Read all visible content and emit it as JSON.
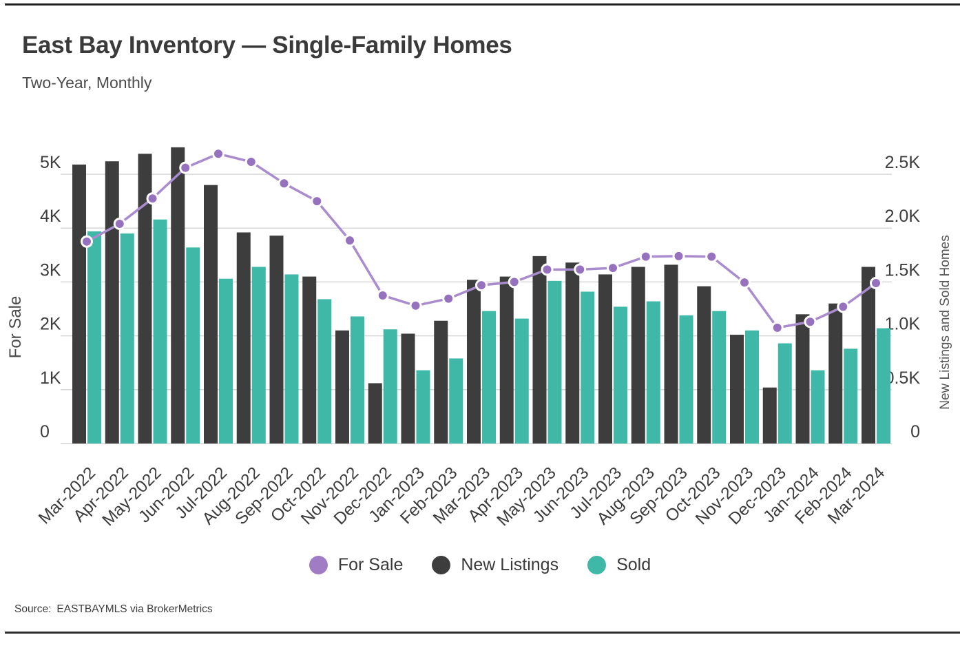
{
  "page": {
    "title": "East Bay Inventory — Single-Family Homes",
    "subtitle": "Two-Year, Monthly",
    "source_label": "Source:",
    "source_text": "EASTBAYMLS via BrokerMetrics"
  },
  "colors": {
    "for_sale_line": "#a98cce",
    "for_sale_marker": "#9671bd",
    "for_sale_marker_ring": "#ffffff",
    "new_listings": "#3d3d3d",
    "sold": "#3fb8a8",
    "legend_for_sale": "#a07cc5",
    "grid": "#d6d6d6",
    "tick_text": "#3d3d3d",
    "axis_title_text": "#4a4a4a"
  },
  "legend": {
    "items": [
      {
        "label": "For Sale",
        "color": "#a07cc5"
      },
      {
        "label": "New Listings",
        "color": "#3d3d3d"
      },
      {
        "label": "Sold",
        "color": "#3fb8a8"
      }
    ]
  },
  "chart_data": {
    "type": "bar",
    "subtype": "grouped bars with overlaid line (dual axis)",
    "title": "East Bay Inventory — Single-Family Homes",
    "subtitle": "Two-Year, Monthly",
    "categories": [
      "Mar-2022",
      "Apr-2022",
      "May-2022",
      "Jun-2022",
      "Jul-2022",
      "Aug-2022",
      "Sep-2022",
      "Oct-2022",
      "Nov-2022",
      "Dec-2022",
      "Jan-2023",
      "Feb-2023",
      "Mar-2023",
      "Apr-2023",
      "May-2023",
      "Jun-2023",
      "Jul-2023",
      "Aug-2023",
      "Sep-2023",
      "Oct-2023",
      "Nov-2023",
      "Dec-2023",
      "Jan-2024",
      "Feb-2024",
      "Mar-2024"
    ],
    "series": [
      {
        "name": "For Sale",
        "type": "line",
        "axis": "left",
        "values": [
          3750,
          4080,
          4550,
          5120,
          5380,
          5230,
          4830,
          4500,
          3770,
          2750,
          2560,
          2690,
          2940,
          3000,
          3230,
          3230,
          3260,
          3470,
          3480,
          3470,
          2990,
          2150,
          2260,
          2540,
          2980
        ]
      },
      {
        "name": "New Listings",
        "type": "bar",
        "axis": "right",
        "values": [
          2590,
          2620,
          2690,
          2750,
          2400,
          1960,
          1930,
          1550,
          1050,
          560,
          1020,
          1140,
          1520,
          1550,
          1740,
          1680,
          1570,
          1640,
          1660,
          1460,
          1010,
          520,
          1200,
          1300,
          1640
        ]
      },
      {
        "name": "Sold",
        "type": "bar",
        "axis": "right",
        "values": [
          1970,
          1950,
          2080,
          1820,
          1530,
          1640,
          1570,
          1340,
          1180,
          1060,
          680,
          790,
          1230,
          1160,
          1510,
          1410,
          1270,
          1320,
          1190,
          1230,
          1050,
          930,
          680,
          880,
          1070
        ]
      }
    ],
    "left_axis": {
      "title": "For Sale",
      "ticks": [
        "0",
        "1K",
        "2K",
        "3K",
        "4K",
        "5K"
      ],
      "min": 0,
      "max": 5000
    },
    "right_axis": {
      "title": "New Listings and Sold Homes",
      "ticks": [
        "0",
        "0.5K",
        "1.0K",
        "1.5K",
        "2.0K",
        "2.5K"
      ],
      "min": 0,
      "max": 2500
    },
    "grid": "horizontal gridlines on",
    "legend_position": "bottom center"
  }
}
